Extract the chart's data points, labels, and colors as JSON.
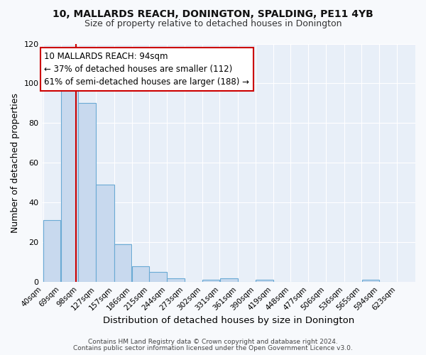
{
  "title": "10, MALLARDS REACH, DONINGTON, SPALDING, PE11 4YB",
  "subtitle": "Size of property relative to detached houses in Donington",
  "xlabel": "Distribution of detached houses by size in Donington",
  "ylabel": "Number of detached properties",
  "bin_edges": [
    40,
    69,
    98,
    127,
    157,
    186,
    215,
    244,
    273,
    302,
    331,
    361,
    390,
    419,
    448,
    477,
    506,
    536,
    565,
    594,
    623
  ],
  "bin_labels": [
    "40sqm",
    "69sqm",
    "98sqm",
    "127sqm",
    "157sqm",
    "186sqm",
    "215sqm",
    "244sqm",
    "273sqm",
    "302sqm",
    "331sqm",
    "361sqm",
    "390sqm",
    "419sqm",
    "448sqm",
    "477sqm",
    "506sqm",
    "536sqm",
    "565sqm",
    "594sqm",
    "623sqm"
  ],
  "counts": [
    31,
    97,
    90,
    49,
    19,
    8,
    5,
    2,
    0,
    1,
    2,
    0,
    1,
    0,
    0,
    0,
    0,
    0,
    1,
    0
  ],
  "bar_color": "#c8d9ee",
  "bar_edge_color": "#6aaad4",
  "property_line_x": 94,
  "property_line_color": "#cc0000",
  "annotation_title": "10 MALLARDS REACH: 94sqm",
  "annotation_line1": "← 37% of detached houses are smaller (112)",
  "annotation_line2": "61% of semi-detached houses are larger (188) →",
  "annotation_box_color": "#cc0000",
  "ylim": [
    0,
    120
  ],
  "yticks": [
    0,
    20,
    40,
    60,
    80,
    100,
    120
  ],
  "footer1": "Contains HM Land Registry data © Crown copyright and database right 2024.",
  "footer2": "Contains public sector information licensed under the Open Government Licence v3.0.",
  "fig_bg_color": "#f7f9fc",
  "plot_bg_color": "#e8eff8"
}
